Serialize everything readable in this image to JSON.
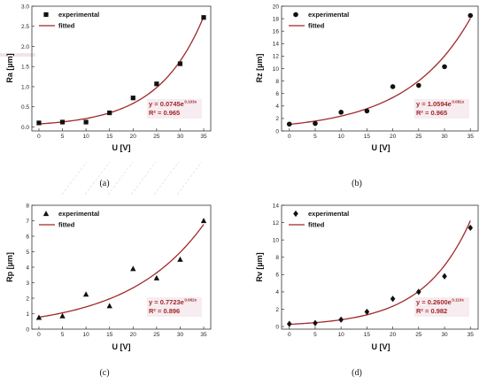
{
  "colors": {
    "fit": "#a0282a",
    "marker": "#111111",
    "axis": "#333333",
    "highlight": "#f3e4ea"
  },
  "chart_data": [
    {
      "type": "scatter",
      "panel_label": "(a)",
      "marker": "square",
      "xlabel": "U [V]",
      "ylabel": "Ra [µm]",
      "xlim": [
        -1.5,
        36.5
      ],
      "ylim": [
        -0.1,
        3.0
      ],
      "x_ticks": [
        0,
        5,
        10,
        15,
        20,
        25,
        30,
        35
      ],
      "y_ticks": [
        0.0,
        0.5,
        1.0,
        1.5,
        2.0,
        2.5,
        3.0
      ],
      "y_decimals": 1,
      "legend_position": "top-left",
      "series": [
        {
          "name": "experimental",
          "x": [
            0,
            5,
            10,
            15,
            20,
            25,
            30,
            35
          ],
          "y": [
            0.1,
            0.12,
            0.12,
            0.35,
            0.72,
            1.07,
            1.57,
            2.72
          ]
        },
        {
          "name": "fitted",
          "fit": {
            "a": 0.0745,
            "b": 0.103
          }
        }
      ],
      "equation": {
        "main": "y = 0.0745e",
        "exp": "0.103x",
        "r2": "R² = 0.965"
      }
    },
    {
      "type": "scatter",
      "panel_label": "(b)",
      "marker": "circle",
      "xlabel": "U [V]",
      "ylabel": "Rz [µm]",
      "xlim": [
        -1.5,
        36.5
      ],
      "ylim": [
        0,
        20
      ],
      "x_ticks": [
        0,
        5,
        10,
        15,
        20,
        25,
        30,
        35
      ],
      "y_ticks": [
        0,
        2,
        4,
        6,
        8,
        10,
        12,
        14,
        16,
        18,
        20
      ],
      "y_decimals": 0,
      "legend_position": "top-left",
      "series": [
        {
          "name": "experimental",
          "x": [
            0,
            5,
            10,
            15,
            20,
            25,
            30,
            35
          ],
          "y": [
            1.1,
            1.2,
            3.0,
            3.2,
            7.1,
            7.3,
            10.3,
            18.5
          ]
        },
        {
          "name": "fitted",
          "fit": {
            "a": 1.0594,
            "b": 0.081
          }
        }
      ],
      "equation": {
        "main": "y = 1.0594e",
        "exp": "0.081x",
        "r2": "R² = 0.965"
      }
    },
    {
      "type": "scatter",
      "panel_label": "(c)",
      "marker": "triangle",
      "xlabel": "U [V]",
      "ylabel": "Rp [µm]",
      "xlim": [
        -1.5,
        36.5
      ],
      "ylim": [
        0,
        8
      ],
      "x_ticks": [
        0,
        5,
        10,
        15,
        20,
        25,
        30,
        35
      ],
      "y_ticks": [
        0,
        1,
        2,
        3,
        4,
        5,
        6,
        7,
        8
      ],
      "y_decimals": 0,
      "legend_position": "top-left",
      "series": [
        {
          "name": "experimental",
          "x": [
            0,
            5,
            10,
            15,
            20,
            25,
            30,
            35
          ],
          "y": [
            0.75,
            0.85,
            2.25,
            1.5,
            3.9,
            3.3,
            4.5,
            7.0
          ]
        },
        {
          "name": "fitted",
          "fit": {
            "a": 0.7723,
            "b": 0.062
          }
        }
      ],
      "equation": {
        "main": "y = 0.7723e",
        "exp": "0.062x",
        "r2": "R² = 0.896"
      }
    },
    {
      "type": "scatter",
      "panel_label": "(d)",
      "marker": "diamond",
      "xlabel": "U [V]",
      "ylabel": "Rv [µm]",
      "xlim": [
        -1.5,
        36.5
      ],
      "ylim": [
        -0.3,
        14
      ],
      "x_ticks": [
        0,
        5,
        10,
        15,
        20,
        25,
        30,
        35
      ],
      "y_ticks": [
        0,
        2,
        4,
        6,
        8,
        10,
        12,
        14
      ],
      "y_decimals": 0,
      "legend_position": "top-left",
      "series": [
        {
          "name": "experimental",
          "x": [
            0,
            5,
            10,
            15,
            20,
            25,
            30,
            35
          ],
          "y": [
            0.3,
            0.4,
            0.8,
            1.7,
            3.2,
            4.0,
            5.8,
            11.4
          ]
        },
        {
          "name": "fitted",
          "fit": {
            "a": 0.26,
            "b": 0.11
          }
        }
      ],
      "equation": {
        "main": "y = 0.2600e",
        "exp": "0.110x",
        "r2": "R² = 0.982"
      }
    }
  ]
}
